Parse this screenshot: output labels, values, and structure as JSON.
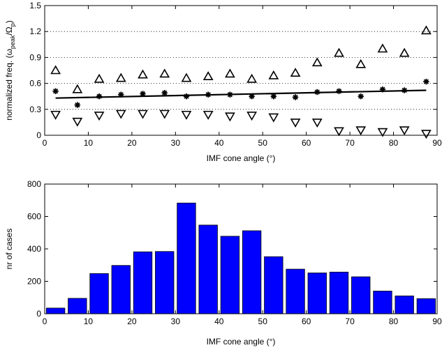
{
  "chart_data": [
    {
      "type": "scatter",
      "xlabel": "IMF cone angle (°)",
      "ylabel": "normalized freq. (ω_peak/Ω_p)",
      "ylabel_parts": {
        "base": "normalized freq. (ω",
        "sub1": "peak",
        "mid": "/Ω",
        "sub2": "p",
        "end": ")"
      },
      "xlim": [
        0,
        90
      ],
      "ylim": [
        0,
        1.5
      ],
      "xticks": [
        0,
        10,
        20,
        30,
        40,
        50,
        60,
        70,
        80,
        90
      ],
      "yticks": [
        0,
        0.3,
        0.6,
        0.9,
        1.2,
        1.5
      ],
      "ytick_labels": [
        "0",
        "0.3",
        "0.6",
        "0.9",
        "1.2",
        "1.5"
      ],
      "grid": "horizontal dotted",
      "x": [
        2.5,
        7.5,
        12.5,
        17.5,
        22.5,
        27.5,
        32.5,
        37.5,
        42.5,
        47.5,
        52.5,
        57.5,
        62.5,
        67.5,
        72.5,
        77.5,
        82.5,
        87.5
      ],
      "series": [
        {
          "marker": "triangle-up",
          "values": [
            0.75,
            0.53,
            0.65,
            0.66,
            0.7,
            0.71,
            0.66,
            0.68,
            0.71,
            0.65,
            0.69,
            0.72,
            0.84,
            0.95,
            0.82,
            1.0,
            0.95,
            1.21
          ]
        },
        {
          "marker": "asterisk",
          "values": [
            0.51,
            0.35,
            0.45,
            0.47,
            0.48,
            0.49,
            0.45,
            0.47,
            0.47,
            0.45,
            0.45,
            0.44,
            0.5,
            0.51,
            0.45,
            0.53,
            0.52,
            0.62
          ]
        },
        {
          "marker": "triangle-down",
          "values": [
            0.24,
            0.16,
            0.23,
            0.25,
            0.25,
            0.25,
            0.24,
            0.24,
            0.22,
            0.23,
            0.21,
            0.15,
            0.15,
            0.05,
            0.06,
            0.04,
            0.06,
            0.02
          ]
        }
      ],
      "fit_line": {
        "x": [
          2.5,
          87.5
        ],
        "y": [
          0.43,
          0.52
        ]
      }
    },
    {
      "type": "bar",
      "xlabel": "IMF cone angle (°)",
      "ylabel": "nr of cases",
      "xlim": [
        0,
        90
      ],
      "ylim": [
        0,
        800
      ],
      "xticks": [
        0,
        10,
        20,
        30,
        40,
        50,
        60,
        70,
        80,
        90
      ],
      "yticks": [
        0,
        200,
        400,
        600,
        800
      ],
      "bin_width": 5,
      "x": [
        2.5,
        7.5,
        12.5,
        17.5,
        22.5,
        27.5,
        32.5,
        37.5,
        42.5,
        47.5,
        52.5,
        57.5,
        62.5,
        67.5,
        72.5,
        77.5,
        82.5,
        87.5
      ],
      "values": [
        35,
        95,
        248,
        298,
        382,
        384,
        683,
        547,
        478,
        512,
        352,
        275,
        252,
        257,
        228,
        140,
        110,
        93
      ],
      "bar_color": "#0000ff"
    }
  ]
}
